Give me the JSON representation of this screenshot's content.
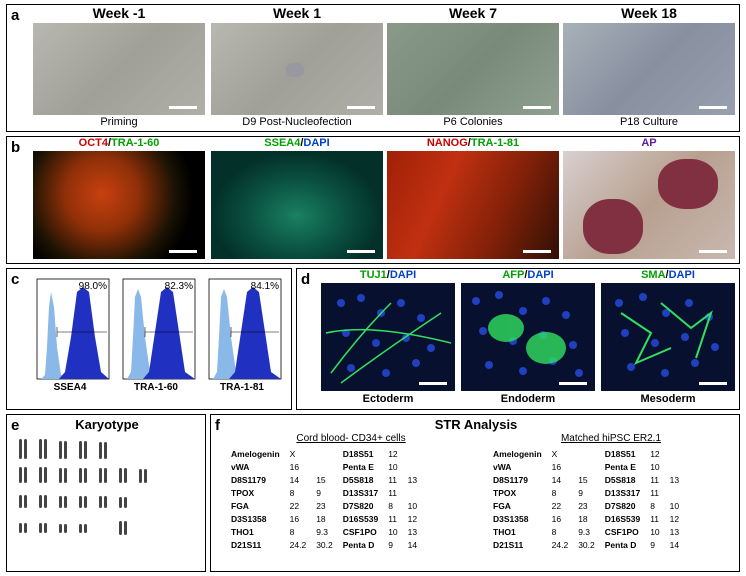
{
  "panel_a": {
    "label": "a",
    "columns": [
      {
        "header": "Week -1",
        "caption": "Priming"
      },
      {
        "header": "Week 1",
        "caption": "D9 Post-Nucleofection"
      },
      {
        "header": "Week 7",
        "caption": "P6 Colonies"
      },
      {
        "header": "Week 18",
        "caption": "P18 Culture"
      }
    ]
  },
  "panel_b": {
    "label": "b",
    "images": [
      {
        "markers": [
          {
            "text": "OCT4",
            "color": "red"
          },
          {
            "text": "/",
            "color": "black"
          },
          {
            "text": "TRA-1-60",
            "color": "green"
          }
        ]
      },
      {
        "markers": [
          {
            "text": "SSEA4",
            "color": "green"
          },
          {
            "text": "/",
            "color": "black"
          },
          {
            "text": "DAPI",
            "color": "blue"
          }
        ]
      },
      {
        "markers": [
          {
            "text": "NANOG",
            "color": "red"
          },
          {
            "text": "/",
            "color": "black"
          },
          {
            "text": "TRA-1-81",
            "color": "green"
          }
        ]
      },
      {
        "markers": [
          {
            "text": "AP",
            "color": "purple"
          }
        ]
      }
    ]
  },
  "panel_c": {
    "label": "c",
    "plots": [
      {
        "marker": "SSEA4",
        "percent": "98.0%"
      },
      {
        "marker": "TRA-1-60",
        "percent": "82.3%"
      },
      {
        "marker": "TRA-1-81",
        "percent": "84.1%"
      }
    ],
    "colors": {
      "isotype": "#8ab8e8",
      "sample": "#2030c0"
    }
  },
  "panel_d": {
    "label": "d",
    "images": [
      {
        "marker": "TUJ1",
        "layer": "Ectoderm"
      },
      {
        "marker": "AFP",
        "layer": "Endoderm"
      },
      {
        "marker": "SMA",
        "layer": "Mesoderm"
      }
    ],
    "dapi_label": "DAPI"
  },
  "panel_e": {
    "label": "e",
    "title": "Karyotype"
  },
  "panel_f": {
    "label": "f",
    "title": "STR Analysis",
    "left_header": "Cord blood-  CD34+ cells",
    "right_header": "Matched hiPSC ER2.1",
    "left_rows": [
      [
        "Amelogenin",
        "X",
        "",
        "D18S51",
        "12",
        ""
      ],
      [
        "vWA",
        "16",
        "",
        "Penta E",
        "10",
        ""
      ],
      [
        "D8S1179",
        "14",
        "15",
        "D5S818",
        "11",
        "13"
      ],
      [
        "TPOX",
        "8",
        "9",
        "D13S317",
        "11",
        ""
      ],
      [
        "FGA",
        "22",
        "23",
        "D7S820",
        "8",
        "10"
      ],
      [
        "D3S1358",
        "16",
        "18",
        "D16S539",
        "11",
        "12"
      ],
      [
        "THO1",
        "8",
        "9.3",
        "CSF1PO",
        "10",
        "13"
      ],
      [
        "D21S11",
        "24.2",
        "30.2",
        "Penta D",
        "9",
        "14"
      ]
    ],
    "right_rows": [
      [
        "Amelogenin",
        "X",
        "",
        "D18S51",
        "12",
        ""
      ],
      [
        "vWA",
        "16",
        "",
        "Penta E",
        "10",
        ""
      ],
      [
        "D8S1179",
        "14",
        "15",
        "D5S818",
        "11",
        "13"
      ],
      [
        "TPOX",
        "8",
        "9",
        "D13S317",
        "11",
        ""
      ],
      [
        "FGA",
        "22",
        "23",
        "D7S820",
        "8",
        "10"
      ],
      [
        "D3S1358",
        "16",
        "18",
        "D16S539",
        "11",
        "12"
      ],
      [
        "THO1",
        "8",
        "9.3",
        "CSF1PO",
        "10",
        "13"
      ],
      [
        "D21S11",
        "24.2",
        "30.2",
        "Penta D",
        "9",
        "14"
      ]
    ]
  }
}
